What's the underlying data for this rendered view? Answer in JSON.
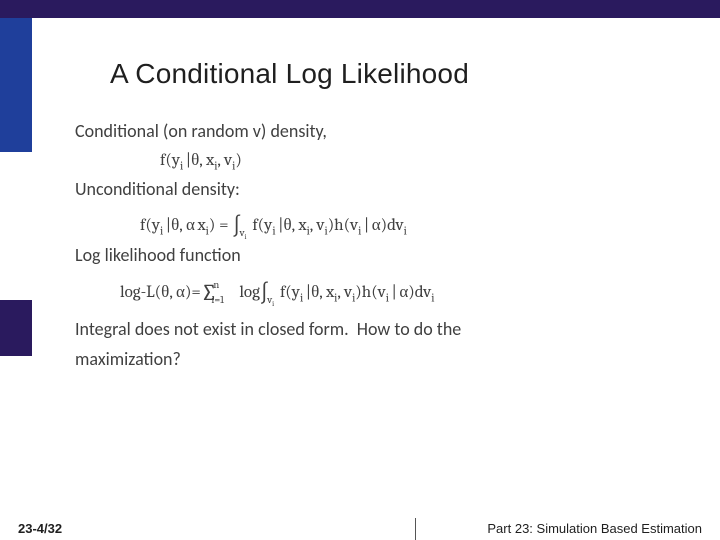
{
  "theme": {
    "accent_dark": "#2a1a5e",
    "accent_mid": "#1f3f9b",
    "body_text": "#404040",
    "title_text": "#1f1f1f",
    "footer_sep": "#555555",
    "background": "#ffffff",
    "title_fontsize": 28,
    "body_fontsize": 18,
    "formula_fontsize": 17,
    "footer_fontsize": 13
  },
  "title": "A Conditional Log Likelihood",
  "body": {
    "l1": "Conditional (on random v) density,",
    "f1": "f(y<sub>i</sub><span class='gap'></span>|θ, x<sub>i</sub>, v<sub>i</sub>)",
    "l2": "Unconditional density:",
    "f2": "f(y<sub>i</sub><span class='gap'></span>|θ, α<span class='gap'></span>x<sub>i</sub>) = <span class='int'>∫</span><span class='intsub'>v<sub>i</sub></span> f(y<sub>i</sub><span class='gap'></span>|θ, x<sub>i</sub>, v<sub>i</sub>)h(v<sub>i</sub><span class='gap'></span>|<span class='gap'></span>α)dv<sub>i</sub>",
    "l3": "Log likelihood function",
    "f3": "log-L(θ, α)=<span class='sum'>∑</span><span class='sumsup'>n</span><span class='sumsub'>i=1</span> log<span class='int'>∫</span><span class='intsub'>v<sub>i</sub></span> f(y<sub>i</sub><span class='gap'></span>|θ, x<sub>i</sub>, v<sub>i</sub>)h(v<sub>i</sub><span class='gap'></span>|<span class='gap'></span>α)dv<sub>i</sub>",
    "l4a": "Integral does not exist in closed form.  How to do the",
    "l4b": "maximization?"
  },
  "footer": {
    "left": "23-4/32",
    "right": "Part 23: Simulation Based Estimation"
  }
}
